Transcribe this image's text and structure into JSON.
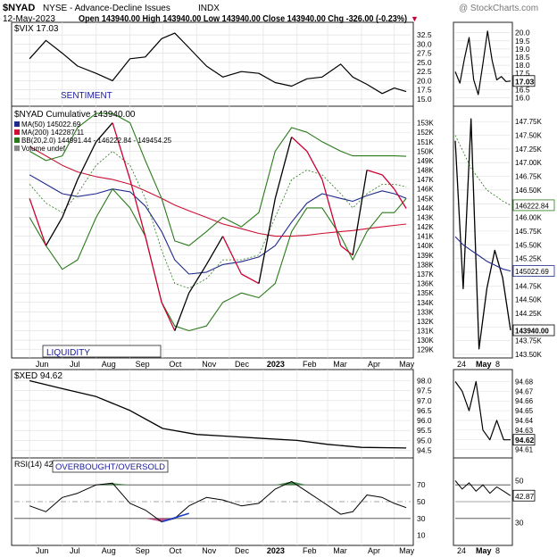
{
  "header": {
    "symbol": "$NYAD",
    "exchange_name": "NYSE - Advance-Decline Issues",
    "index_tag": "INDX",
    "date": "12-May-2023",
    "quote": "Open 143940.00  High 143940.00  Low 143940.00  Close 143940.00  Chg -326.00 (-0.23%)",
    "down_arrow": "▼",
    "watermark": "@ StockCharts.com"
  },
  "colors": {
    "price": "#000000",
    "price_down": "#cc0033",
    "ma50": "#1f2a8c",
    "ma200": "#cc1133",
    "bb": "#2a7a1a",
    "bb_mid": "#2a7a1a",
    "rsi_fill": "#2e7d32",
    "trendline": "#1a3cc8",
    "annotation": "#1a1aa0"
  },
  "x_axis": {
    "main_ticks": [
      "Jun",
      "Jul",
      "Aug",
      "Sep",
      "Oct",
      "Nov",
      "Dec",
      "2023",
      "Feb",
      "Mar",
      "Apr",
      "May"
    ],
    "side_ticks": [
      "24",
      "May",
      "8"
    ]
  },
  "chart_data": [
    {
      "type": "line",
      "panel": "vix",
      "legend": "$VIX 17.03",
      "annotation": "SENTIMENT",
      "last_value_label": "17.03",
      "yticks": [
        "32.5",
        "30.0",
        "27.5",
        "25.0",
        "22.5",
        "20.0",
        "17.5",
        "15.0"
      ],
      "ylim": [
        14,
        34
      ],
      "x": [
        "2022-06-01",
        "2022-06-16",
        "2022-07-01",
        "2022-07-15",
        "2022-08-01",
        "2022-08-16",
        "2022-09-01",
        "2022-09-15",
        "2022-09-30",
        "2022-10-12",
        "2022-10-25",
        "2022-11-10",
        "2022-11-25",
        "2022-12-12",
        "2022-12-28",
        "2023-01-12",
        "2023-01-27",
        "2023-02-10",
        "2023-02-24",
        "2023-03-13",
        "2023-03-24",
        "2023-04-06",
        "2023-04-20",
        "2023-05-01",
        "2023-05-12"
      ],
      "values": [
        26.0,
        31.0,
        27.5,
        24.0,
        22.0,
        20.0,
        26.0,
        26.5,
        31.5,
        33.0,
        29.0,
        24.0,
        21.0,
        22.5,
        22.0,
        19.5,
        18.5,
        20.5,
        21.0,
        24.5,
        21.0,
        19.0,
        16.5,
        18.0,
        17.03
      ],
      "side_yticks": [
        "20.0",
        "19.5",
        "19.0",
        "18.5",
        "18.0",
        "17.5",
        "17.0",
        "16.5",
        "16.0"
      ],
      "side_ylim": [
        15.7,
        20.2
      ],
      "side_values": [
        17.6,
        16.9,
        18.4,
        19.7,
        17.1,
        16.2,
        18.1,
        20.1,
        18.3,
        17.1,
        17.3,
        17.0,
        17.03
      ]
    },
    {
      "type": "line",
      "panel": "nyad",
      "legend": [
        "$NYAD Cumulative 143940.00",
        "MA(50) 145022.69",
        "MA(200) 142287.11",
        "BB(20,2.0) 144991.44 - 146222.84 - 149454.25",
        "Volume undef"
      ],
      "annotation": "LIQUIDITY",
      "yticks": [
        "153K",
        "152K",
        "151K",
        "150K",
        "149K",
        "148K",
        "147K",
        "146K",
        "145K",
        "144K",
        "143K",
        "142K",
        "141K",
        "140K",
        "139K",
        "138K",
        "137K",
        "136K",
        "135K",
        "134K",
        "133K",
        "132K",
        "131K",
        "130K",
        "129K"
      ],
      "ylim": [
        128500,
        154000
      ],
      "x": [
        "2022-06-01",
        "2022-06-16",
        "2022-07-01",
        "2022-07-15",
        "2022-08-01",
        "2022-08-16",
        "2022-09-01",
        "2022-09-15",
        "2022-09-30",
        "2022-10-12",
        "2022-10-25",
        "2022-11-10",
        "2022-11-25",
        "2022-12-12",
        "2022-12-28",
        "2023-01-12",
        "2023-01-27",
        "2023-02-10",
        "2023-02-24",
        "2023-03-13",
        "2023-03-24",
        "2023-04-06",
        "2023-04-20",
        "2023-05-01",
        "2023-05-12"
      ],
      "series": [
        {
          "name": "$NYAD Cumulative",
          "values": [
            145000,
            140000,
            143000,
            147000,
            151000,
            153000,
            147000,
            141000,
            134000,
            131000,
            135000,
            138000,
            141000,
            137000,
            136000,
            145000,
            151500,
            150000,
            147000,
            140000,
            139000,
            148000,
            147500,
            146000,
            143940
          ]
        },
        {
          "name": "MA(50)",
          "values": [
            147500,
            146500,
            145500,
            145200,
            145500,
            146000,
            145700,
            144200,
            141500,
            138500,
            137000,
            137200,
            138000,
            138300,
            138800,
            140000,
            142500,
            144500,
            145500,
            145000,
            144700,
            145300,
            145800,
            145500,
            145022.69
          ]
        },
        {
          "name": "MA(200)",
          "values": [
            150500,
            149500,
            148500,
            147800,
            147300,
            147000,
            146500,
            145800,
            145000,
            144300,
            143700,
            143000,
            142300,
            141800,
            141300,
            141000,
            141000,
            141100,
            141300,
            141500,
            141600,
            141800,
            142000,
            142150,
            142287.11
          ]
        },
        {
          "name": "BB(20,2.0) upper",
          "values": [
            150000,
            149000,
            149500,
            152500,
            154000,
            154000,
            153000,
            149000,
            145000,
            140500,
            140000,
            141500,
            143000,
            142000,
            143500,
            150000,
            152500,
            152000,
            151000,
            150000,
            149500,
            149500,
            149500,
            149500,
            149454.25
          ]
        },
        {
          "name": "BB(20,2.0) middle",
          "values": [
            146500,
            144500,
            143500,
            145500,
            148500,
            150000,
            148500,
            145000,
            139500,
            136000,
            135500,
            136500,
            138500,
            138500,
            139000,
            143000,
            147000,
            148000,
            147500,
            145500,
            144000,
            145500,
            146500,
            146500,
            146222.84
          ]
        },
        {
          "name": "BB(20,2.0) lower",
          "values": [
            143000,
            140000,
            137500,
            138500,
            143000,
            146000,
            144000,
            141000,
            134000,
            131500,
            131000,
            131500,
            134000,
            135000,
            134500,
            136000,
            141500,
            144000,
            144000,
            141000,
            138500,
            141500,
            143500,
            143500,
            144991.44
          ]
        }
      ],
      "side_yticks": [
        "147.75K",
        "147.50K",
        "147.25K",
        "147.00K",
        "146.75K",
        "146.50K",
        "146.25K",
        "146.00K",
        "145.75K",
        "145.50K",
        "145.25K",
        "145.00K",
        "144.75K",
        "144.50K",
        "144.25K",
        "144.00K",
        "143.75K",
        "143.50K"
      ],
      "side_ylim": [
        143500,
        147900
      ],
      "side_series": [
        {
          "name": "$NYAD Cumulative",
          "values": [
            147400,
            144700,
            147800,
            143600,
            144700,
            145400,
            144900,
            143940
          ]
        },
        {
          "name": "MA(50)",
          "values": [
            145650,
            145500,
            145400,
            145300,
            145200,
            145130,
            145060,
            145022.69
          ]
        },
        {
          "name": "BB(20,2.0) middle",
          "values": [
            147500,
            147200,
            146900,
            146700,
            146500,
            146400,
            146300,
            146222.84
          ]
        }
      ],
      "side_value_labels": [
        "146222.84",
        "145022.69",
        "143940.00"
      ]
    },
    {
      "type": "line",
      "panel": "xed",
      "legend": "$XED 94.62",
      "last_value_label": "94.62",
      "yticks": [
        "98.0",
        "97.5",
        "97.0",
        "96.5",
        "96.0",
        "95.5",
        "95.0",
        "94.5"
      ],
      "ylim": [
        94.3,
        98.2
      ],
      "x": [
        "2022-06-01",
        "2022-07-01",
        "2022-08-01",
        "2022-09-01",
        "2022-10-01",
        "2022-11-01",
        "2022-12-01",
        "2023-01-01",
        "2023-02-01",
        "2023-03-01",
        "2023-04-01",
        "2023-05-12"
      ],
      "values": [
        98.0,
        97.6,
        97.2,
        96.5,
        95.6,
        95.3,
        95.2,
        95.1,
        95.0,
        94.8,
        94.65,
        94.62
      ],
      "side_yticks": [
        "94.68",
        "94.67",
        "94.66",
        "94.65",
        "94.64",
        "94.63",
        "94.62",
        "94.61"
      ],
      "side_ylim": [
        94.605,
        94.685
      ],
      "side_values": [
        94.68,
        94.67,
        94.65,
        94.68,
        94.63,
        94.62,
        94.64,
        94.62,
        94.62
      ]
    },
    {
      "type": "line",
      "panel": "rsi",
      "legend": "RSI(14) 42.87",
      "annotation": "OVERBOUGHT/OVERSOLD",
      "last_value_label": "42.87",
      "yticks": [
        "70",
        "50",
        "30",
        "10"
      ],
      "ylim": [
        0,
        100
      ],
      "reference_lines": [
        70,
        50,
        30
      ],
      "x": [
        "2022-06-01",
        "2022-06-16",
        "2022-07-01",
        "2022-07-15",
        "2022-08-01",
        "2022-08-16",
        "2022-09-01",
        "2022-09-15",
        "2022-09-30",
        "2022-10-12",
        "2022-10-25",
        "2022-11-10",
        "2022-11-25",
        "2022-12-12",
        "2022-12-28",
        "2023-01-12",
        "2023-01-27",
        "2023-02-10",
        "2023-02-24",
        "2023-03-13",
        "2023-03-24",
        "2023-04-06",
        "2023-04-20",
        "2023-05-01",
        "2023-05-12"
      ],
      "values": [
        45,
        38,
        55,
        60,
        70,
        72,
        48,
        40,
        26,
        30,
        45,
        55,
        52,
        45,
        48,
        65,
        74,
        62,
        50,
        35,
        38,
        58,
        55,
        48,
        42.87
      ],
      "side_yticks": [
        "50",
        "30"
      ],
      "side_ylim": [
        20,
        60
      ],
      "side_values": [
        50,
        46,
        49,
        45,
        48,
        44,
        47,
        45,
        42.87
      ]
    }
  ]
}
